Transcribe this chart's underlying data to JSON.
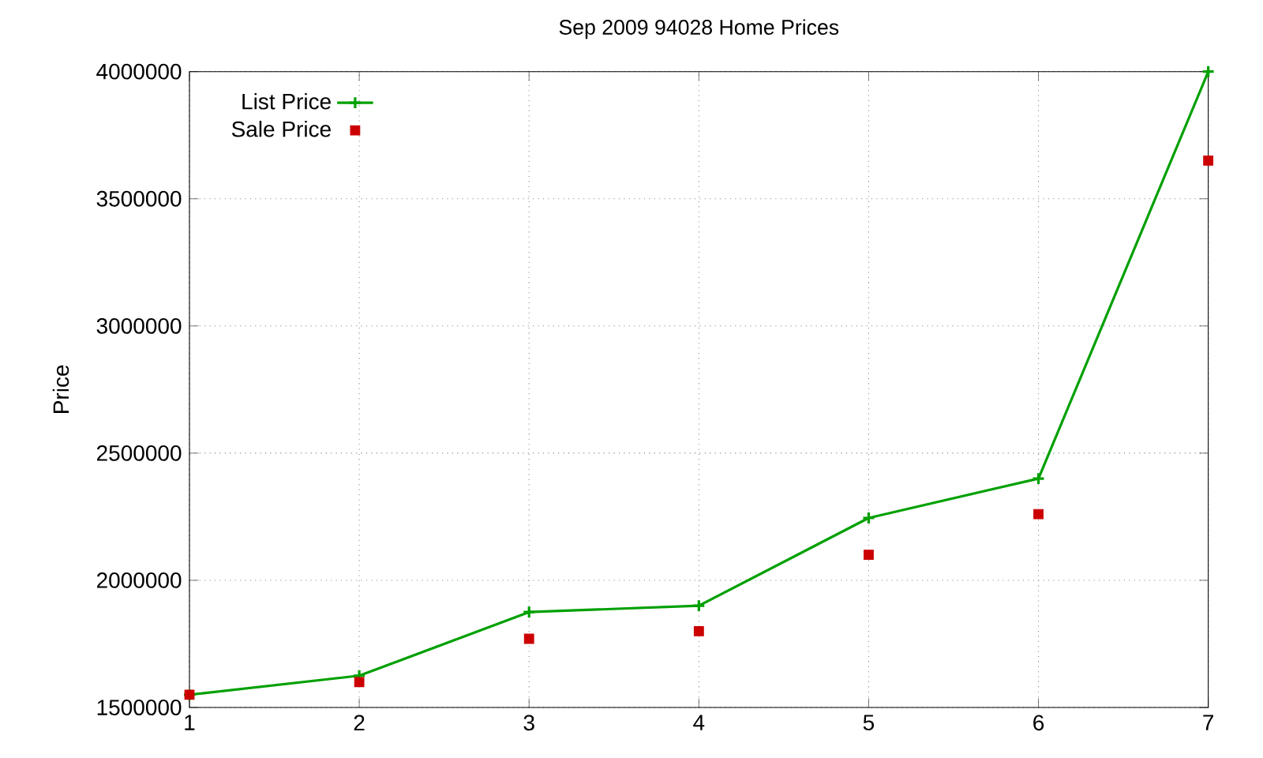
{
  "chart_data": {
    "type": "line",
    "title": "Sep 2009 94028 Home Prices",
    "ylabel": "Price",
    "x": [
      1,
      2,
      3,
      4,
      5,
      6,
      7
    ],
    "series": [
      {
        "name": "List Price",
        "color": "#00a000",
        "marker": "cross",
        "values": [
          1550000,
          1625000,
          1875000,
          1900000,
          2245000,
          2400000,
          4000000
        ]
      },
      {
        "name": "Sale Price",
        "type": "scatter",
        "color": "#cc0000",
        "marker": "square",
        "values": [
          1550000,
          1600000,
          1770000,
          1800000,
          2100000,
          2260000,
          3650000
        ]
      }
    ],
    "xlim": [
      1,
      7
    ],
    "ylim": [
      1500000,
      4000000
    ],
    "xticks": [
      1,
      2,
      3,
      4,
      5,
      6,
      7
    ],
    "yticks": [
      1500000,
      2000000,
      2500000,
      3000000,
      3500000,
      4000000
    ],
    "grid": true,
    "legend": "top left"
  }
}
